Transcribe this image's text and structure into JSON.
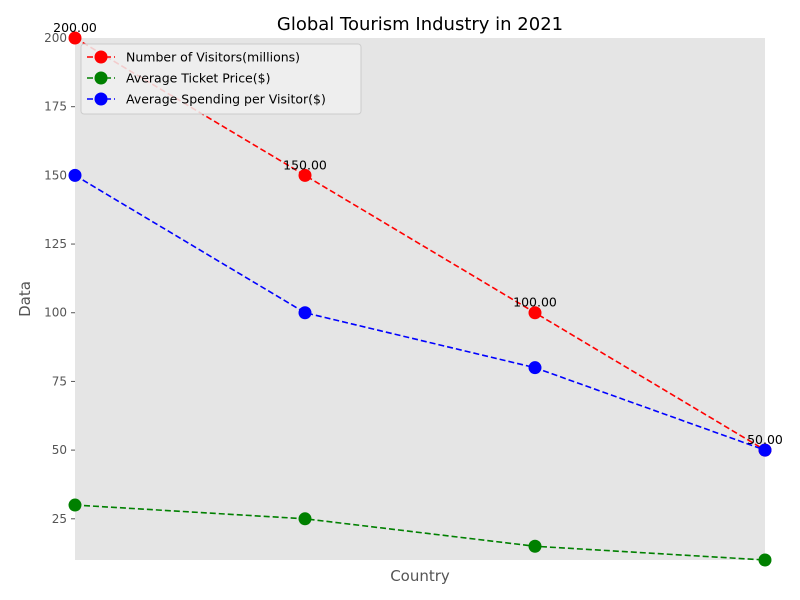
{
  "chart_data": {
    "type": "line",
    "title": "Global Tourism Industry in 2021",
    "xlabel": "Country",
    "ylabel": "Data",
    "categories": [
      "",
      "",
      "",
      ""
    ],
    "ylim": [
      10,
      200
    ],
    "yticks": [
      25,
      50,
      75,
      100,
      125,
      150,
      175,
      200
    ],
    "grid": false,
    "legend_position": "top-left",
    "series": [
      {
        "name": "Number of Visitors(millions)",
        "values": [
          200,
          150,
          100,
          50
        ],
        "color": "#ff0000",
        "data_labels": [
          "200.00",
          "150.00",
          "100.00",
          "50.00"
        ]
      },
      {
        "name": "Average Ticket Price($)",
        "values": [
          30,
          25,
          15,
          10
        ],
        "color": "#008000",
        "data_labels": []
      },
      {
        "name": "Average Spending per Visitor($)",
        "values": [
          150,
          100,
          80,
          50
        ],
        "color": "#0000ff",
        "data_labels": []
      }
    ],
    "colors": {
      "plot_background": "#e5e5e5",
      "axis_text": "#555555"
    }
  }
}
